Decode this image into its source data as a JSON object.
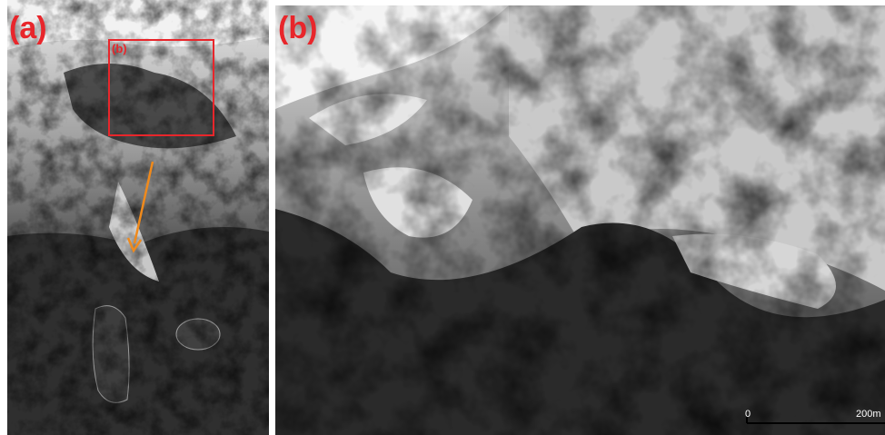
{
  "panels": [
    {
      "label": "(a)",
      "inset_label": "(b)"
    },
    {
      "label": "(b)",
      "scale_bar": {
        "start": "0",
        "end": "200m"
      }
    }
  ]
}
